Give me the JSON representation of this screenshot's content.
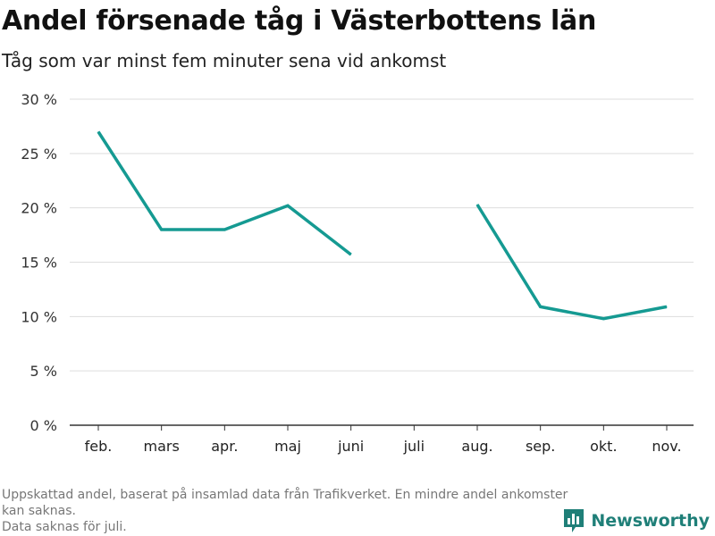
{
  "header": {
    "title": "Andel försenade tåg i Västerbottens län",
    "subtitle": "Tåg som var minst fem minuter sena vid ankomst"
  },
  "footer": {
    "note_line1": "Uppskattad andel, baserat på insamlad data från Trafikverket. En mindre andel ankomster kan saknas.",
    "note_line2": "Data saknas för juli.",
    "brand": "Newsworthy"
  },
  "colors": {
    "line": "#159a92",
    "grid": "#dddddd",
    "brand": "#1f7f78"
  },
  "chart_data": {
    "type": "line",
    "title": "Andel försenade tåg i Västerbottens län",
    "subtitle": "Tåg som var minst fem minuter sena vid ankomst",
    "categories": [
      "feb.",
      "mars",
      "apr.",
      "maj",
      "juni",
      "juli",
      "aug.",
      "sep.",
      "okt.",
      "nov."
    ],
    "series": [
      {
        "values": [
          27.0,
          18.0,
          18.0,
          20.2,
          15.7,
          null,
          20.3,
          10.9,
          9.8,
          10.9
        ]
      }
    ],
    "yticks": [
      0,
      5,
      10,
      15,
      20,
      25,
      30
    ],
    "ytick_suffix": " %",
    "ylim": [
      0,
      30
    ],
    "grid": true,
    "legend": "none"
  }
}
